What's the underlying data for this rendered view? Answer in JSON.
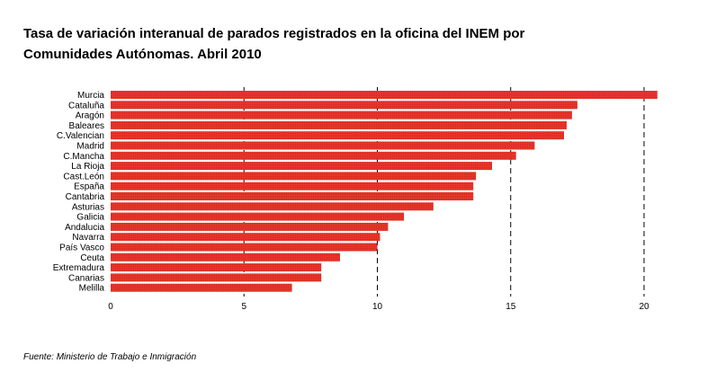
{
  "chart_data": {
    "type": "bar",
    "orientation": "horizontal",
    "title": "Tasa de variación interanual de parados registrados en la oficina del INEM por Comunidades Autónomas. Abril 2010",
    "title_lines": [
      "Tasa de variación interanual de parados registrados en la oficina del INEM por",
      "Comunidades Autónomas. Abril 2010"
    ],
    "xlabel": "",
    "ylabel": "",
    "categories": [
      "Murcia",
      "Cataluña",
      "Aragón",
      "Baleares",
      "C.Valencian",
      "Madrid",
      "C.Mancha",
      "La Rioja",
      "Cast.León",
      "España",
      "Cantabria",
      "Asturias",
      "Galicia",
      "Andalucia",
      "Navarra",
      "País Vasco",
      "Ceuta",
      "Extremadura",
      "Canarias",
      "Melilla"
    ],
    "values": [
      20.5,
      17.5,
      17.3,
      17.1,
      17.0,
      15.9,
      15.2,
      14.3,
      13.7,
      13.6,
      13.6,
      12.1,
      11.0,
      10.4,
      10.1,
      10.0,
      8.6,
      7.9,
      7.9,
      6.8
    ],
    "xlim": [
      0,
      20.5
    ],
    "xticks": [
      0,
      5,
      10,
      15,
      20
    ],
    "grid": "vertical dashed",
    "bar_color": "#e8372c"
  },
  "source": "Fuente: Ministerio de Trabajo e Inmigración"
}
